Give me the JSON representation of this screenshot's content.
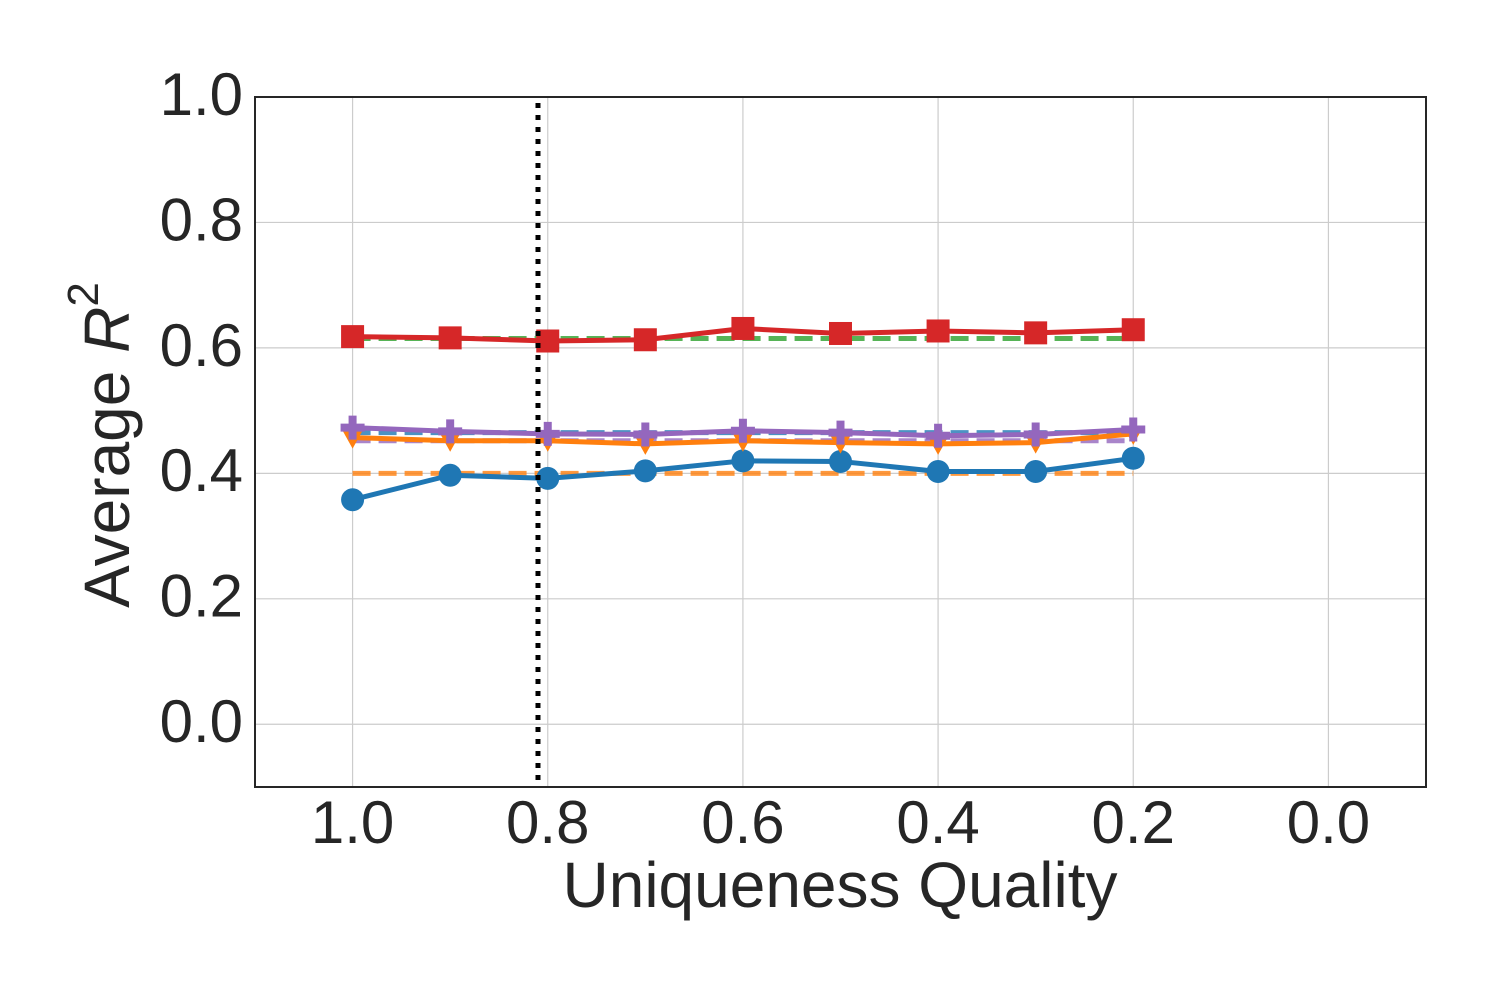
{
  "chart_data": {
    "type": "line",
    "xlabel": "Uniqueness Quality",
    "ylabel": {
      "text": "Average",
      "symbol": "R",
      "exponent": "2"
    },
    "x": [
      1.0,
      0.9,
      0.8,
      0.7,
      0.6,
      0.5,
      0.4,
      0.3,
      0.2
    ],
    "series": [
      {
        "color": "#2ca02c",
        "linestyle": "dashed",
        "values": [
          0.615,
          0.615,
          0.615,
          0.615,
          0.615,
          0.615,
          0.615,
          0.615,
          0.615
        ]
      },
      {
        "color": "#ff7f0e",
        "linestyle": "dashed",
        "values": [
          0.4,
          0.4,
          0.4,
          0.4,
          0.4,
          0.4,
          0.4,
          0.4,
          0.4
        ]
      },
      {
        "color": "#1f77b4",
        "linestyle": "dashed",
        "values": [
          0.465,
          0.465,
          0.465,
          0.465,
          0.465,
          0.465,
          0.465,
          0.465,
          0.465
        ]
      },
      {
        "color": "#9467bd",
        "linestyle": "dashed",
        "values": [
          0.452,
          0.452,
          0.452,
          0.452,
          0.452,
          0.452,
          0.452,
          0.452,
          0.452
        ]
      },
      {
        "color": "#1f77b4",
        "linestyle": "solid",
        "marker": "circle",
        "values": [
          0.358,
          0.397,
          0.392,
          0.404,
          0.42,
          0.419,
          0.403,
          0.403,
          0.424
        ]
      },
      {
        "color": "#ff7f0e",
        "linestyle": "solid",
        "marker": "triangle-down",
        "values": [
          0.457,
          0.452,
          0.452,
          0.447,
          0.452,
          0.449,
          0.447,
          0.449,
          0.463
        ]
      },
      {
        "color": "#d62728",
        "linestyle": "solid",
        "marker": "square",
        "values": [
          0.618,
          0.616,
          0.611,
          0.613,
          0.631,
          0.623,
          0.627,
          0.624,
          0.629
        ]
      },
      {
        "color": "#9467bd",
        "linestyle": "solid",
        "marker": "plus",
        "values": [
          0.473,
          0.467,
          0.463,
          0.462,
          0.468,
          0.465,
          0.46,
          0.462,
          0.47
        ]
      }
    ],
    "vline": 0.81,
    "xlim": [
      1.1,
      -0.1
    ],
    "ylim": [
      -0.1,
      1.0
    ],
    "xticks": [
      {
        "value": 1.0,
        "label": "1.0"
      },
      0.8,
      0.6,
      0.4,
      0.2,
      {
        "value": 0.0,
        "label": "0.0"
      }
    ],
    "yticks": [
      {
        "value": 0.0,
        "label": "0.0"
      },
      0.2,
      0.4,
      0.6,
      0.8,
      {
        "value": 1.0,
        "label": "1.0"
      }
    ],
    "grid": true
  }
}
